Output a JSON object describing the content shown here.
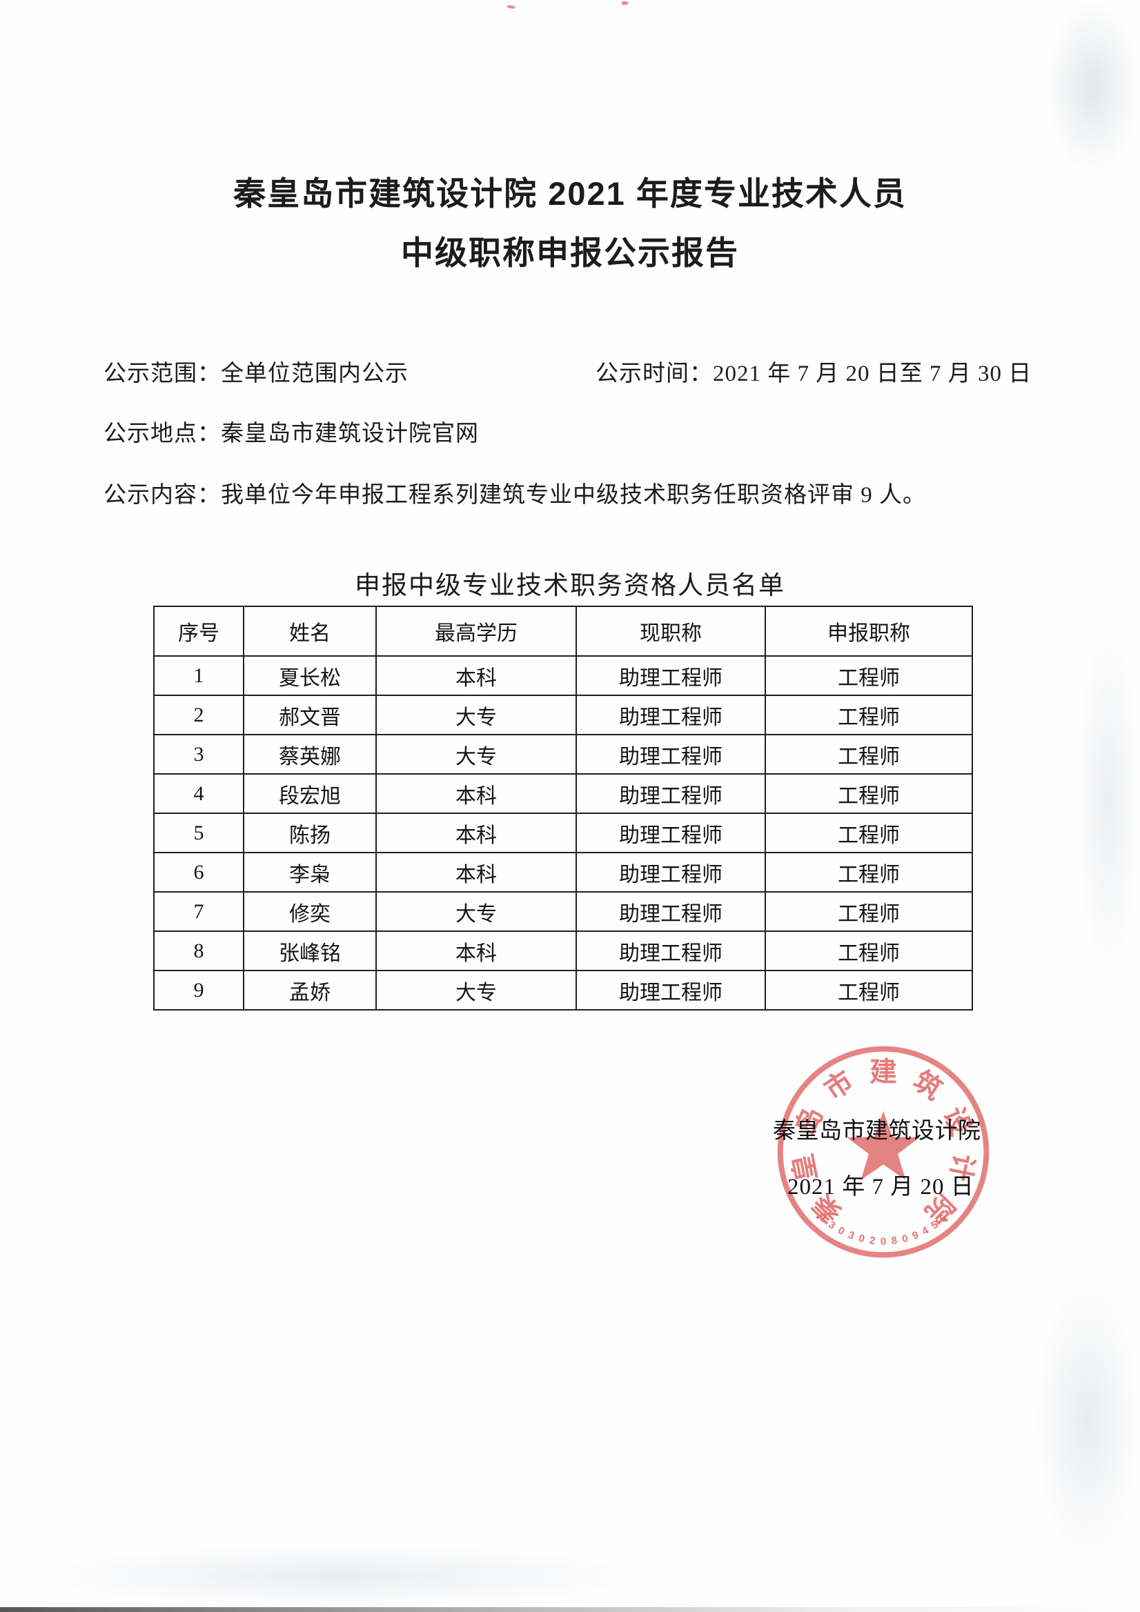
{
  "title": {
    "line1": "秦皇岛市建筑设计院 2021 年度专业技术人员",
    "line2": "中级职称申报公示报告"
  },
  "meta": {
    "scope_label": "公示范围：",
    "scope_value": "全单位范围内公示",
    "time_label": "公示时间：",
    "time_value": "2021 年 7 月 20 日至 7 月 30 日",
    "location_label": "公示地点：",
    "location_value": "秦皇岛市建筑设计院官网",
    "content_label": "公示内容：",
    "content_value": "我单位今年申报工程系列建筑专业中级技术职务任职资格评审 9 人。"
  },
  "table": {
    "title": "申报中级专业技术职务资格人员名单",
    "headers": [
      "序号",
      "姓名",
      "最高学历",
      "现职称",
      "申报职称"
    ],
    "rows": [
      [
        "1",
        "夏长松",
        "本科",
        "助理工程师",
        "工程师"
      ],
      [
        "2",
        "郝文晋",
        "大专",
        "助理工程师",
        "工程师"
      ],
      [
        "3",
        "蔡英娜",
        "大专",
        "助理工程师",
        "工程师"
      ],
      [
        "4",
        "段宏旭",
        "本科",
        "助理工程师",
        "工程师"
      ],
      [
        "5",
        "陈扬",
        "本科",
        "助理工程师",
        "工程师"
      ],
      [
        "6",
        "李枭",
        "本科",
        "助理工程师",
        "工程师"
      ],
      [
        "7",
        "修奕",
        "大专",
        "助理工程师",
        "工程师"
      ],
      [
        "8",
        "张峰铭",
        "本科",
        "助理工程师",
        "工程师"
      ],
      [
        "9",
        "孟娇",
        "大专",
        "助理工程师",
        "工程师"
      ]
    ]
  },
  "signature": {
    "org": "秦皇岛市建筑设计院",
    "date": "2021 年 7 月 20 日"
  },
  "seal": {
    "arc_text": "秦皇岛市建筑设计院",
    "serial": "1303020809456",
    "color": "#dd5050"
  }
}
